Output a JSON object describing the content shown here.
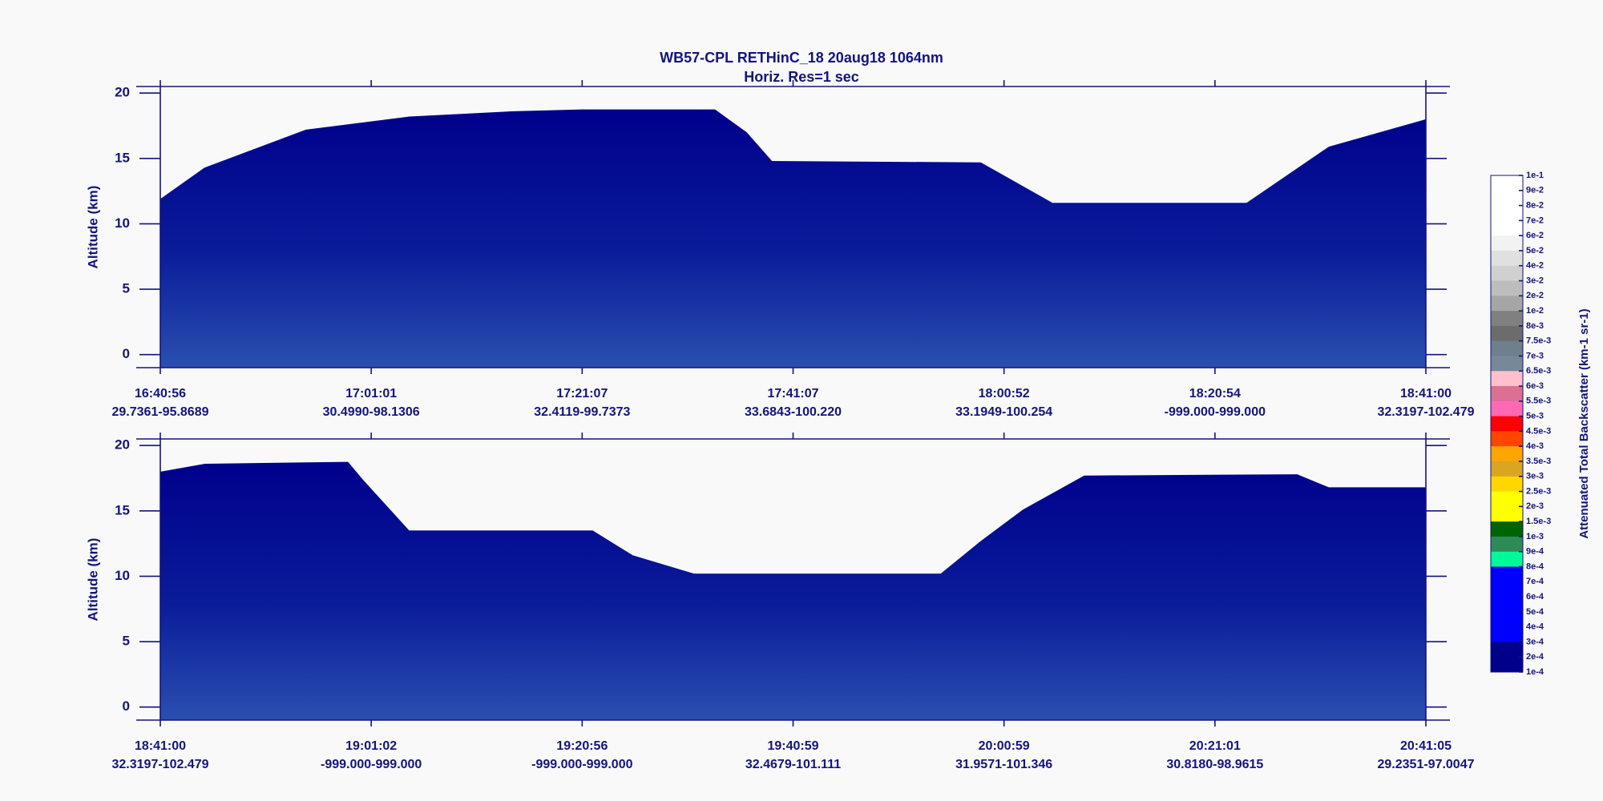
{
  "title": "WB57-CPL  RETHinC_18  20aug18  1064nm",
  "subtitle": "Horiz. Res=1 sec",
  "chart_data": [
    {
      "type": "heatmap",
      "y_label": "Altitude (km)",
      "ylim": [
        -1,
        20.5
      ],
      "yticks": [
        0,
        5,
        10,
        15,
        20
      ],
      "x_labels": [
        "16:40:56",
        "17:01:01",
        "17:21:07",
        "17:41:07",
        "18:00:52",
        "18:20:54",
        "18:41:00"
      ],
      "x_sublabels": [
        "29.7361-95.8689",
        "30.4990-98.1306",
        "32.4119-99.7373",
        "33.6843-100.220",
        "33.1949-100.254",
        "-999.000-999.000",
        "32.3197-102.479"
      ],
      "curtain_top": {
        "x": [
          0,
          0.21,
          0.69,
          1.18,
          1.66,
          2.0,
          2.63,
          2.78,
          2.9,
          3.89,
          4.23,
          5.15,
          5.54,
          6.0
        ],
        "values": [
          11.9,
          14.3,
          17.2,
          18.2,
          18.6,
          18.75,
          18.75,
          17.0,
          14.8,
          14.7,
          11.6,
          11.6,
          15.9,
          18.0
        ]
      }
    },
    {
      "type": "heatmap",
      "y_label": "Altitude (km)",
      "ylim": [
        -1,
        20.5
      ],
      "yticks": [
        0,
        5,
        10,
        15,
        20
      ],
      "x_labels": [
        "18:41:00",
        "19:01:02",
        "19:20:56",
        "19:40:59",
        "20:00:59",
        "20:21:01",
        "20:41:05"
      ],
      "x_sublabels": [
        "32.3197-102.479",
        "-999.000-999.000",
        "-999.000-999.000",
        "32.4679-101.111",
        "31.9571-101.346",
        "30.8180-98.9615",
        "29.2351-97.0047"
      ],
      "curtain_top": {
        "x": [
          0,
          0.21,
          0.89,
          0.96,
          1.18,
          2.05,
          2.24,
          2.53,
          3.7,
          3.89,
          4.09,
          4.38,
          5.39,
          5.54,
          6.0
        ],
        "values": [
          18.0,
          18.6,
          18.75,
          17.4,
          13.5,
          13.5,
          11.6,
          10.2,
          10.2,
          12.7,
          15.1,
          17.7,
          17.8,
          16.8,
          16.8
        ]
      }
    }
  ],
  "colorbar": {
    "label": "Attenuated Total Backscatter (km-1 sr-1)",
    "ticks": [
      {
        "value": 0.1,
        "label": "1e-1"
      },
      {
        "value": 0.09,
        "label": "9e-2"
      },
      {
        "value": 0.08,
        "label": "8e-2"
      },
      {
        "value": 0.07,
        "label": "7e-2"
      },
      {
        "value": 0.06,
        "label": "6e-2"
      },
      {
        "value": 0.05,
        "label": "5e-2"
      },
      {
        "value": 0.04,
        "label": "4e-2"
      },
      {
        "value": 0.03,
        "label": "3e-2"
      },
      {
        "value": 0.02,
        "label": "2e-2"
      },
      {
        "value": 0.01,
        "label": "1e-2"
      },
      {
        "value": 0.008,
        "label": "8e-3"
      },
      {
        "value": 0.0075,
        "label": "7.5e-3"
      },
      {
        "value": 0.007,
        "label": "7e-3"
      },
      {
        "value": 0.0065,
        "label": "6.5e-3"
      },
      {
        "value": 0.006,
        "label": "6e-3"
      },
      {
        "value": 0.0055,
        "label": "5.5e-3"
      },
      {
        "value": 0.005,
        "label": "5e-3"
      },
      {
        "value": 0.0045,
        "label": "4.5e-3"
      },
      {
        "value": 0.004,
        "label": "4e-3"
      },
      {
        "value": 0.0035,
        "label": "3.5e-3"
      },
      {
        "value": 0.003,
        "label": "3e-3"
      },
      {
        "value": 0.0025,
        "label": "2.5e-3"
      },
      {
        "value": 0.002,
        "label": "2e-3"
      },
      {
        "value": 0.0015,
        "label": "1.5e-3"
      },
      {
        "value": 0.001,
        "label": "1e-3"
      },
      {
        "value": 0.0009,
        "label": "9e-4"
      },
      {
        "value": 0.0008,
        "label": "8e-4"
      },
      {
        "value": 0.0007,
        "label": "7e-4"
      },
      {
        "value": 0.0006,
        "label": "6e-4"
      },
      {
        "value": 0.0005,
        "label": "5e-4"
      },
      {
        "value": 0.0004,
        "label": "4e-4"
      },
      {
        "value": 0.0003,
        "label": "3e-4"
      },
      {
        "value": 0.0002,
        "label": "2e-4"
      },
      {
        "value": 0.0001,
        "label": "1e-4"
      }
    ],
    "colors": [
      "#ffffff",
      "#ffffff",
      "#ffffff",
      "#ffffff",
      "#f2f2f2",
      "#e0e0e0",
      "#d0d0d0",
      "#bdbdbd",
      "#a6a6a6",
      "#808080",
      "#6c6c6c",
      "#6e7f8e",
      "#778899",
      "#ffc0cb",
      "#db7093",
      "#ff69b4",
      "#ff0000",
      "#ff4500",
      "#ffa500",
      "#daa520",
      "#ffd700",
      "#ffff00",
      "#ffff00",
      "#006400",
      "#2e8b57",
      "#00fa9a",
      "#0000ff",
      "#0000ff",
      "#0000ff",
      "#0000ff",
      "#0000ff",
      "#00008b",
      "#00008b"
    ]
  }
}
